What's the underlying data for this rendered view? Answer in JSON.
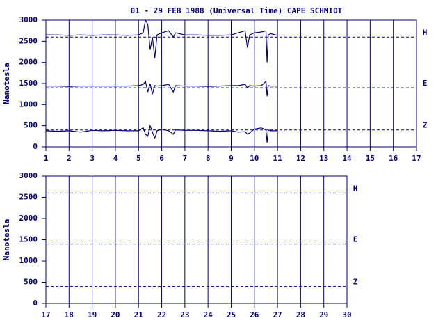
{
  "chart_data": [
    {
      "type": "line",
      "title": "01 - 29 FEB 1988 (Universal Time) CAPE SCHMIDT",
      "ylabel": "Nanotesla",
      "xlim": [
        1,
        17
      ],
      "xticks": [
        1,
        2,
        3,
        4,
        5,
        6,
        7,
        8,
        9,
        10,
        11,
        12,
        13,
        14,
        15,
        16,
        17
      ],
      "ylim": [
        0,
        3000
      ],
      "yticks": [
        0,
        500,
        1000,
        1500,
        2000,
        2500,
        3000
      ],
      "grid": true,
      "color": "#000080",
      "reference_lines": [
        {
          "label": "H",
          "value": 2600
        },
        {
          "label": "E",
          "value": 1400
        },
        {
          "label": "Z",
          "value": 400
        }
      ],
      "x": [
        1,
        1.5,
        2,
        2.5,
        3,
        3.5,
        4,
        4.5,
        5,
        5.2,
        5.3,
        5.4,
        5.5,
        5.6,
        5.7,
        5.8,
        6,
        6.3,
        6.5,
        6.6,
        7,
        7.5,
        8,
        8.5,
        9,
        9.3,
        9.6,
        9.7,
        9.8,
        10,
        10.3,
        10.5,
        10.55,
        10.6,
        10.7,
        11
      ],
      "series": [
        {
          "name": "H",
          "color": "#000080",
          "values": [
            2650,
            2650,
            2640,
            2650,
            2640,
            2650,
            2650,
            2640,
            2650,
            2700,
            3000,
            2900,
            2300,
            2600,
            2100,
            2650,
            2700,
            2750,
            2600,
            2700,
            2650,
            2650,
            2640,
            2640,
            2650,
            2700,
            2750,
            2350,
            2650,
            2700,
            2720,
            2750,
            2000,
            2650,
            2680,
            2640
          ]
        },
        {
          "name": "E",
          "color": "#000080",
          "values": [
            1440,
            1440,
            1430,
            1440,
            1440,
            1440,
            1440,
            1440,
            1450,
            1480,
            1550,
            1300,
            1500,
            1250,
            1450,
            1440,
            1450,
            1480,
            1300,
            1450,
            1440,
            1440,
            1430,
            1440,
            1450,
            1450,
            1480,
            1400,
            1450,
            1440,
            1450,
            1550,
            1200,
            1450,
            1440,
            1440
          ]
        },
        {
          "name": "Z",
          "color": "#000080",
          "values": [
            380,
            370,
            380,
            350,
            390,
            380,
            390,
            380,
            380,
            450,
            300,
            250,
            500,
            350,
            200,
            380,
            420,
            380,
            300,
            400,
            390,
            390,
            380,
            370,
            380,
            350,
            360,
            300,
            330,
            420,
            450,
            400,
            100,
            400,
            380,
            380
          ]
        }
      ]
    },
    {
      "type": "line",
      "ylabel": "Nanotesla",
      "xlim": [
        17,
        30
      ],
      "xticks": [
        17,
        18,
        19,
        20,
        21,
        22,
        23,
        24,
        25,
        26,
        27,
        28,
        29,
        30
      ],
      "ylim": [
        0,
        3000
      ],
      "yticks": [
        0,
        500,
        1000,
        1500,
        2000,
        2500,
        3000
      ],
      "grid": true,
      "color": "#000080",
      "reference_lines": [
        {
          "label": "H",
          "value": 2600
        },
        {
          "label": "E",
          "value": 1400
        },
        {
          "label": "Z",
          "value": 400
        }
      ]
    }
  ]
}
